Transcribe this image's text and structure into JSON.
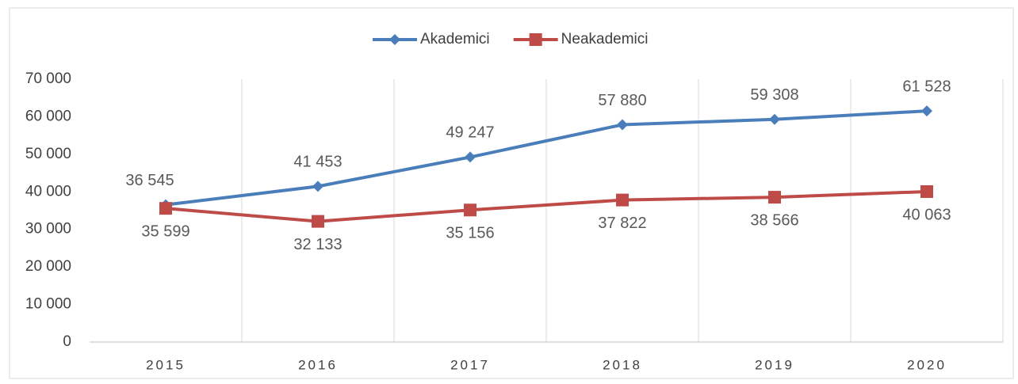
{
  "chart_data": {
    "type": "line",
    "categories": [
      "2015",
      "2016",
      "2017",
      "2018",
      "2019",
      "2020"
    ],
    "series": [
      {
        "name": "Akademici",
        "color": "#4a7ebb",
        "marker": "diamond",
        "values": [
          36545,
          41453,
          49247,
          57880,
          59308,
          61528
        ],
        "value_labels": [
          "36 545",
          "41 453",
          "49 247",
          "57 880",
          "59 308",
          "61 528"
        ]
      },
      {
        "name": "Neakademici",
        "color": "#be4b48",
        "marker": "square",
        "values": [
          35599,
          32133,
          35156,
          37822,
          38566,
          40063
        ],
        "value_labels": [
          "35 599",
          "32 133",
          "35 156",
          "37 822",
          "38 566",
          "40 063"
        ]
      }
    ],
    "ylim": [
      0,
      70000
    ],
    "yticks": [
      {
        "value": 0,
        "label": "0"
      },
      {
        "value": 10000,
        "label": "10 000"
      },
      {
        "value": 20000,
        "label": "20 000"
      },
      {
        "value": 30000,
        "label": "30 000"
      },
      {
        "value": 40000,
        "label": "40 000"
      },
      {
        "value": 50000,
        "label": "50 000"
      },
      {
        "value": 60000,
        "label": "60 000"
      },
      {
        "value": 70000,
        "label": "70 000"
      }
    ],
    "grid": true,
    "legend": "top"
  }
}
